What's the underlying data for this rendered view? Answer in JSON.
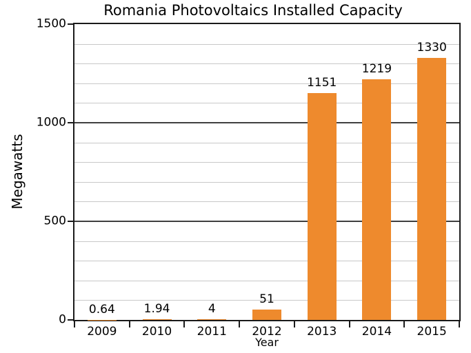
{
  "chart_data": {
    "type": "bar",
    "title": "Romania Photovoltaics Installed Capacity",
    "xlabel": "Year",
    "ylabel": "Megawatts",
    "categories": [
      "2009",
      "2010",
      "2011",
      "2012",
      "2013",
      "2014",
      "2015"
    ],
    "values": [
      0.64,
      1.94,
      4,
      51,
      1151,
      1219,
      1330
    ],
    "value_labels": [
      "0.64",
      "1.94",
      "4",
      "51",
      "1151",
      "1219",
      "1330"
    ],
    "ylim": [
      0,
      1500
    ],
    "y_major_ticks": [
      0,
      500,
      1000,
      1500
    ],
    "y_minor_step": 100,
    "grid": "minor every 100 (light), major at 500 and 1000 (dark)",
    "legend_position": "none",
    "colors": {
      "bar": "#EE8A2D",
      "minor_grid": "#C8C8C8",
      "major_grid": "#3F3F3F",
      "axis_frame": "#1A1A1A",
      "background": "#FFFFFF",
      "text": "#000000"
    }
  }
}
